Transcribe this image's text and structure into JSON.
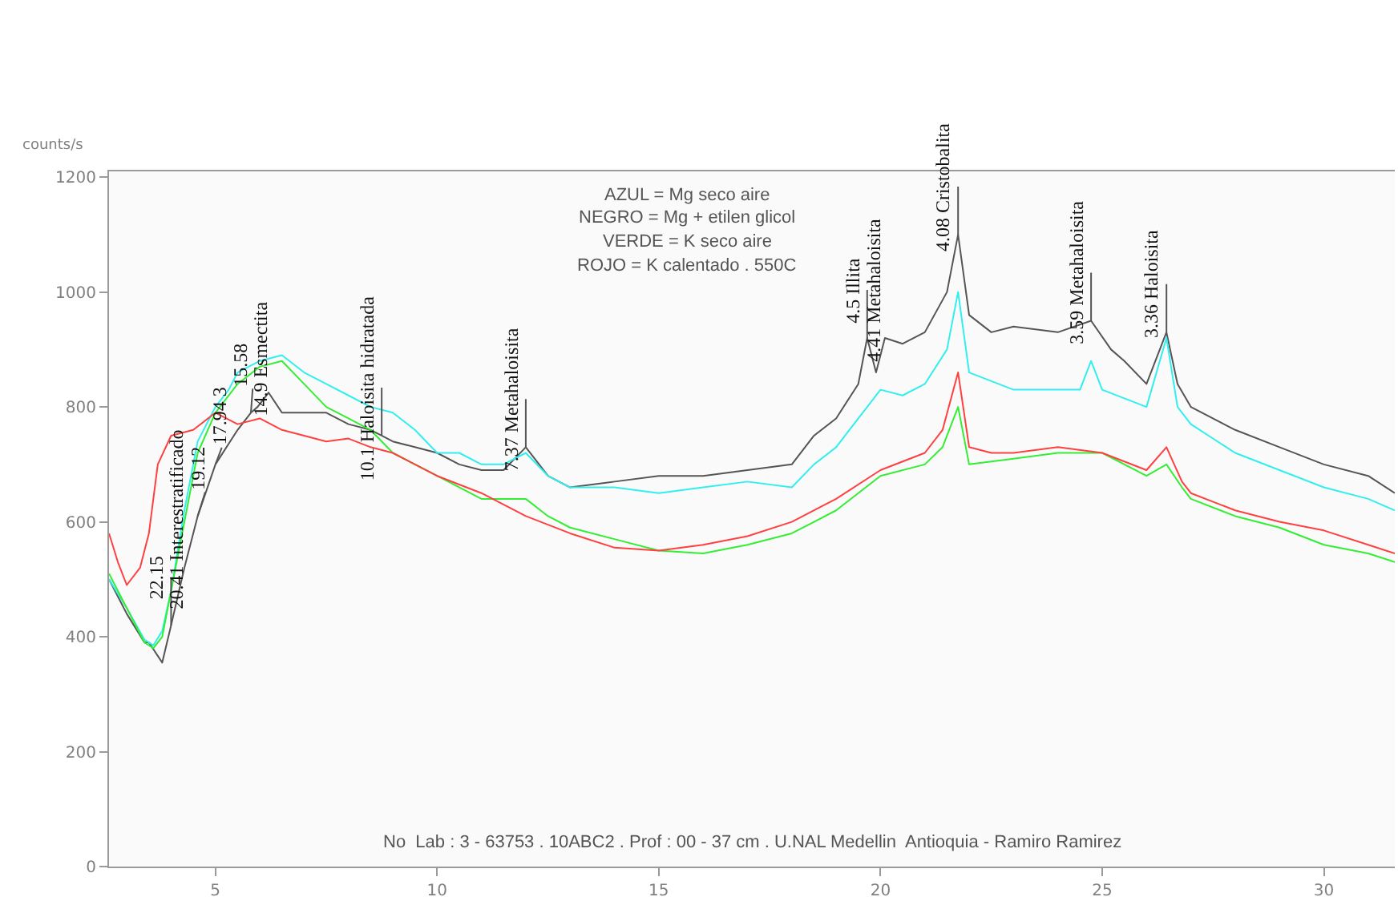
{
  "chart_data": {
    "type": "line",
    "ylabel": "counts/s",
    "xlim": [
      2.6,
      31.6
    ],
    "xticks": [
      5,
      10,
      15,
      20,
      25,
      30
    ],
    "ylim": [
      0,
      1210
    ],
    "yticks": [
      0,
      200,
      400,
      600,
      800,
      1000,
      1200
    ],
    "marker": "none",
    "line_style": "solid",
    "series": [
      {
        "color": "#ff4040",
        "x": [
          2.6,
          2.8,
          3.0,
          3.3,
          3.5,
          3.7,
          4.0,
          4.5,
          5.0,
          5.5,
          6.0,
          6.5,
          7.0,
          7.5,
          8.0,
          8.5,
          9.0,
          9.5,
          10.0,
          11.0,
          12.0,
          13.0,
          14.0,
          15.0,
          16.0,
          17.0,
          18.0,
          19.0,
          20.0,
          21.0,
          21.4,
          21.75,
          22.0,
          22.5,
          23.0,
          24.0,
          25.0,
          26.0,
          26.45,
          26.8,
          27.0,
          28.0,
          29.0,
          30.0,
          31.0,
          31.6
        ],
        "values": [
          580,
          530,
          490,
          520,
          580,
          700,
          750,
          760,
          790,
          770,
          780,
          760,
          750,
          740,
          745,
          730,
          720,
          700,
          680,
          650,
          610,
          580,
          555,
          550,
          560,
          575,
          600,
          640,
          690,
          720,
          760,
          860,
          730,
          720,
          720,
          730,
          720,
          690,
          730,
          670,
          650,
          620,
          600,
          585,
          560,
          545
        ]
      },
      {
        "color": "#33ee33",
        "x": [
          2.6,
          3.0,
          3.4,
          3.6,
          3.8,
          4.0,
          4.3,
          4.6,
          5.0,
          5.5,
          6.0,
          6.5,
          7.0,
          7.5,
          8.0,
          8.5,
          9.0,
          10.0,
          11.0,
          12.0,
          12.5,
          13.0,
          14.0,
          15.0,
          16.0,
          17.0,
          18.0,
          19.0,
          20.0,
          21.0,
          21.4,
          21.75,
          22.0,
          23.0,
          24.0,
          25.0,
          26.0,
          26.45,
          26.8,
          27.0,
          28.0,
          29.0,
          30.0,
          31.0,
          31.6
        ],
        "values": [
          510,
          450,
          390,
          380,
          400,
          480,
          600,
          720,
          790,
          840,
          870,
          880,
          840,
          800,
          780,
          760,
          720,
          680,
          640,
          640,
          610,
          590,
          570,
          550,
          545,
          560,
          580,
          620,
          680,
          700,
          730,
          800,
          700,
          710,
          720,
          720,
          680,
          700,
          660,
          640,
          610,
          590,
          560,
          545,
          530
        ]
      },
      {
        "color": "#33eeee",
        "x": [
          2.6,
          3.0,
          3.4,
          3.6,
          3.8,
          4.0,
          4.3,
          4.6,
          5.0,
          5.3,
          5.5,
          6.0,
          6.5,
          7.0,
          7.5,
          8.0,
          8.5,
          9.0,
          9.5,
          10.0,
          10.5,
          11.0,
          11.5,
          12.0,
          12.5,
          13.0,
          14.0,
          15.0,
          16.0,
          17.0,
          18.0,
          18.5,
          19.0,
          19.5,
          20.0,
          20.5,
          21.0,
          21.5,
          21.75,
          22.0,
          23.0,
          24.0,
          24.5,
          24.75,
          25.0,
          26.0,
          26.45,
          26.7,
          27.0,
          28.0,
          29.0,
          30.0,
          31.0,
          31.6
        ],
        "values": [
          500,
          450,
          395,
          385,
          410,
          480,
          620,
          740,
          800,
          830,
          860,
          880,
          890,
          860,
          840,
          820,
          800,
          790,
          760,
          720,
          720,
          700,
          700,
          720,
          680,
          660,
          660,
          650,
          660,
          670,
          660,
          700,
          730,
          780,
          830,
          820,
          840,
          900,
          1000,
          860,
          830,
          830,
          830,
          880,
          830,
          800,
          920,
          800,
          770,
          720,
          690,
          660,
          640,
          620
        ]
      },
      {
        "color": "#555555",
        "x": [
          2.6,
          3.0,
          3.4,
          3.5,
          3.8,
          4.0,
          4.3,
          4.6,
          5.0,
          5.5,
          5.8,
          5.95,
          6.2,
          6.5,
          7.0,
          7.5,
          8.0,
          8.5,
          8.75,
          9.0,
          9.5,
          10.0,
          10.5,
          11.0,
          11.5,
          12.0,
          12.5,
          13.0,
          14.0,
          15.0,
          16.0,
          17.0,
          18.0,
          18.5,
          19.0,
          19.5,
          19.7,
          19.9,
          20.1,
          20.5,
          21.0,
          21.5,
          21.75,
          22.0,
          22.5,
          23.0,
          24.0,
          24.75,
          25.2,
          25.5,
          26.0,
          26.45,
          26.7,
          27.0,
          28.0,
          29.0,
          30.0,
          31.0,
          31.6
        ],
        "values": [
          500,
          440,
          390,
          390,
          355,
          420,
          520,
          610,
          700,
          760,
          790,
          800,
          825,
          790,
          790,
          790,
          770,
          760,
          750,
          740,
          730,
          720,
          700,
          690,
          690,
          730,
          680,
          660,
          670,
          680,
          680,
          690,
          700,
          750,
          780,
          840,
          920,
          860,
          920,
          910,
          930,
          1000,
          1100,
          960,
          930,
          940,
          930,
          950,
          900,
          880,
          840,
          930,
          840,
          800,
          760,
          730,
          700,
          680,
          650
        ]
      }
    ],
    "annotations": [
      {
        "text": "22.15",
        "x": 4.0,
        "y": 420
      },
      {
        "text": "20.41 Interestratificado",
        "x": 4.3,
        "y": 520
      },
      {
        "text": "19.12",
        "x": 4.6,
        "y": 610
      },
      {
        "text": "17.94 3",
        "x": 5.0,
        "y": 700
      },
      {
        "text": "15.58",
        "x": 5.8,
        "y": 790
      },
      {
        "text": "14.9 Esmectita",
        "x": 5.95,
        "y": 800
      },
      {
        "text": "10.1 Haloisita hidratada",
        "x": 8.75,
        "y": 750
      },
      {
        "text": "7.37 Metahaloisita",
        "x": 12.0,
        "y": 730
      },
      {
        "text": "4.5 Illita",
        "x": 19.7,
        "y": 920
      },
      {
        "text": "4.41 Metahaloisita",
        "x": 20.1,
        "y": 920
      },
      {
        "text": "4.08 Cristobalita",
        "x": 21.75,
        "y": 1100
      },
      {
        "text": "3.59 Metahaloisita",
        "x": 24.75,
        "y": 950
      },
      {
        "text": "3.36 Haloisita",
        "x": 26.45,
        "y": 930
      },
      "AZUL = Mg seco aire",
      "NEGRO = Mg + etilen glicol",
      "VERDE = K seco aire",
      "ROJO = K calentado . 550C",
      "No  Lab : 3 - 63753 . 10ABC2 . Prof : 00 - 37 cm . U.NAL Medellin  Antioquia - Ramiro Ramirez"
    ]
  }
}
